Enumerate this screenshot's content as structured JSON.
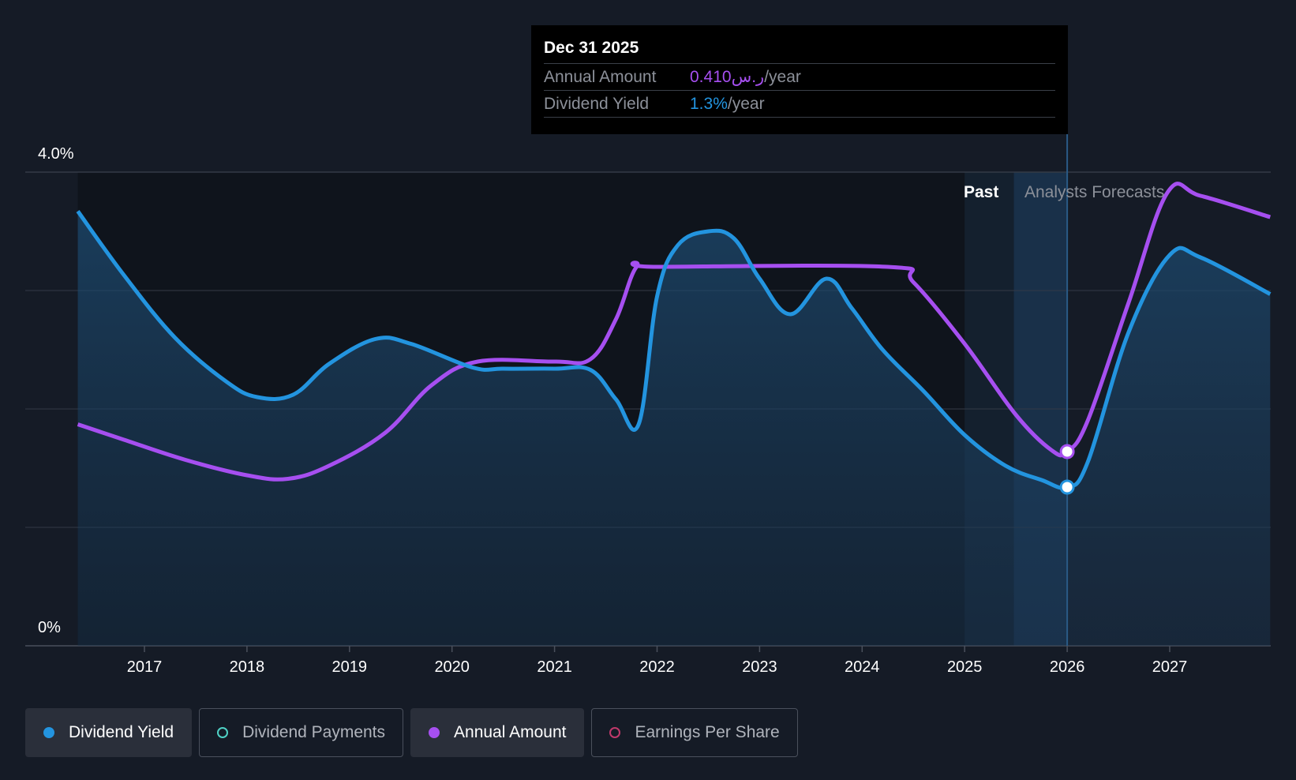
{
  "tooltip": {
    "date": "Dec 31 2025",
    "rows": [
      {
        "label": "Annual Amount",
        "value": "0.410ر.س",
        "unit": "/year"
      },
      {
        "label": "Dividend Yield",
        "value": "1.3%",
        "unit": "/year"
      }
    ]
  },
  "regions": {
    "past": "Past",
    "forecast": "Analysts Forecasts"
  },
  "legend": [
    {
      "label": "Dividend Yield",
      "color": "#2394df",
      "active": true
    },
    {
      "label": "Dividend Payments",
      "color": "#4fd1c5",
      "active": false
    },
    {
      "label": "Annual Amount",
      "color": "#a64ff0",
      "active": true
    },
    {
      "label": "Earnings Per Share",
      "color": "#c0396b",
      "active": false
    }
  ],
  "colors": {
    "yield": "#2394df",
    "amount": "#a64ff0",
    "background": "#151b26"
  },
  "chart_data": {
    "type": "line",
    "title": "",
    "xlabel": "",
    "ylabel": "",
    "ylim": [
      0,
      4.0
    ],
    "xlim": [
      2016.0,
      2027.98
    ],
    "y_tick_labels": [
      "4.0%",
      "0%"
    ],
    "x_ticks": [
      2017,
      2018,
      2019,
      2020,
      2021,
      2022,
      2023,
      2024,
      2025,
      2026,
      2027
    ],
    "highlight_x": 2026.0,
    "past_region": [
      2025.0,
      2025.48
    ],
    "forecast_region": [
      2025.48,
      2026.0
    ],
    "series": [
      {
        "name": "Dividend Yield",
        "unit": "%",
        "points": [
          [
            2016.35,
            3.67
          ],
          [
            2016.8,
            3.13
          ],
          [
            2017.3,
            2.6
          ],
          [
            2017.8,
            2.23
          ],
          [
            2018.1,
            2.1
          ],
          [
            2018.45,
            2.12
          ],
          [
            2018.8,
            2.38
          ],
          [
            2019.25,
            2.59
          ],
          [
            2019.6,
            2.55
          ],
          [
            2020.2,
            2.35
          ],
          [
            2020.5,
            2.34
          ],
          [
            2021.0,
            2.34
          ],
          [
            2021.35,
            2.33
          ],
          [
            2021.6,
            2.08
          ],
          [
            2021.82,
            1.87
          ],
          [
            2022.0,
            2.95
          ],
          [
            2022.2,
            3.38
          ],
          [
            2022.5,
            3.5
          ],
          [
            2022.75,
            3.44
          ],
          [
            2023.0,
            3.1
          ],
          [
            2023.3,
            2.8
          ],
          [
            2023.65,
            3.1
          ],
          [
            2023.9,
            2.85
          ],
          [
            2024.2,
            2.5
          ],
          [
            2024.6,
            2.15
          ],
          [
            2025.0,
            1.78
          ],
          [
            2025.4,
            1.52
          ],
          [
            2025.75,
            1.4
          ],
          [
            2026.0,
            1.34
          ],
          [
            2026.2,
            1.55
          ],
          [
            2026.6,
            2.65
          ],
          [
            2027.0,
            3.3
          ],
          [
            2027.3,
            3.28
          ],
          [
            2027.98,
            2.97
          ]
        ]
      },
      {
        "name": "Annual Amount",
        "unit": "ر.س",
        "points": [
          [
            2016.35,
            1.87
          ],
          [
            2016.8,
            1.74
          ],
          [
            2017.4,
            1.57
          ],
          [
            2018.0,
            1.44
          ],
          [
            2018.4,
            1.41
          ],
          [
            2018.8,
            1.52
          ],
          [
            2019.35,
            1.8
          ],
          [
            2019.8,
            2.2
          ],
          [
            2020.25,
            2.4
          ],
          [
            2021.0,
            2.4
          ],
          [
            2021.35,
            2.42
          ],
          [
            2021.6,
            2.76
          ],
          [
            2021.8,
            3.2
          ],
          [
            2022.0,
            3.2
          ],
          [
            2024.25,
            3.2
          ],
          [
            2024.5,
            3.07
          ],
          [
            2025.0,
            2.55
          ],
          [
            2025.5,
            1.95
          ],
          [
            2025.85,
            1.65
          ],
          [
            2026.0,
            1.64
          ],
          [
            2026.2,
            1.9
          ],
          [
            2026.6,
            2.9
          ],
          [
            2026.98,
            3.83
          ],
          [
            2027.3,
            3.8
          ],
          [
            2027.98,
            3.62
          ]
        ]
      }
    ]
  }
}
